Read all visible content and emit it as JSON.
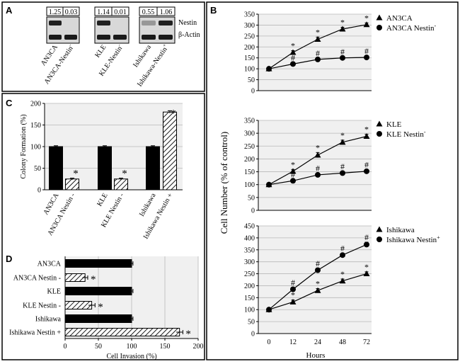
{
  "panel_a": {
    "label": "A",
    "blots": [
      {
        "ratios": [
          "1.25",
          "0.03"
        ],
        "lanes": [
          "AN3CA",
          "AN3CA-Nestin"
        ],
        "sup": [
          "",
          "-"
        ]
      },
      {
        "ratios": [
          "1.14",
          "0.01"
        ],
        "lanes": [
          "KLE",
          "KLE-Nestin"
        ],
        "sup": [
          "",
          "-"
        ]
      },
      {
        "ratios": [
          "0.55",
          "1.06"
        ],
        "lanes": [
          "Ishikawa",
          "Ishikawa-Nestin"
        ],
        "sup": [
          "",
          "+"
        ]
      }
    ],
    "row_labels": [
      "Nestin",
      "β-Actin"
    ]
  },
  "chart_data": [
    {
      "panel": "B",
      "type": "line",
      "x": [
        0,
        12,
        24,
        48,
        72
      ],
      "ylim": [
        0,
        350
      ],
      "yticks": [
        0,
        50,
        100,
        150,
        200,
        250,
        300,
        350
      ],
      "series": [
        {
          "name": "AN3CA",
          "sup": "",
          "marker": "triangle",
          "values": [
            100,
            175,
            235,
            282,
            302
          ],
          "errors": [
            3,
            8,
            10,
            8,
            8
          ],
          "mark": "*"
        },
        {
          "name": "AN3CA Nestin",
          "sup": "-",
          "marker": "circle",
          "values": [
            100,
            122,
            143,
            150,
            152
          ],
          "errors": [
            3,
            6,
            6,
            6,
            6
          ],
          "mark": "#"
        }
      ]
    },
    {
      "panel": "B",
      "type": "line",
      "x": [
        0,
        12,
        24,
        48,
        72
      ],
      "ylim": [
        0,
        350
      ],
      "yticks": [
        0,
        50,
        100,
        150,
        200,
        250,
        300,
        350
      ],
      "series": [
        {
          "name": "KLE",
          "sup": "",
          "marker": "triangle",
          "values": [
            100,
            152,
            215,
            265,
            288
          ],
          "errors": [
            3,
            7,
            10,
            8,
            8
          ],
          "mark": "*"
        },
        {
          "name": "KLE Nestin",
          "sup": "-",
          "marker": "circle",
          "values": [
            100,
            115,
            138,
            145,
            152
          ],
          "errors": [
            3,
            5,
            6,
            6,
            6
          ],
          "mark": "#"
        }
      ]
    },
    {
      "panel": "B",
      "type": "line",
      "x": [
        0,
        12,
        24,
        48,
        72
      ],
      "ylim": [
        0,
        450
      ],
      "yticks": [
        0,
        50,
        100,
        150,
        200,
        250,
        300,
        350,
        400,
        450
      ],
      "series": [
        {
          "name": "Ishikawa",
          "sup": "",
          "marker": "triangle",
          "values": [
            100,
            132,
            180,
            220,
            250
          ],
          "errors": [
            3,
            8,
            8,
            8,
            8
          ],
          "mark": "*"
        },
        {
          "name": "Ishikawa Nestin",
          "sup": "+",
          "marker": "circle",
          "values": [
            100,
            185,
            265,
            328,
            372
          ],
          "errors": [
            3,
            8,
            8,
            8,
            10
          ],
          "mark": "#"
        }
      ]
    },
    {
      "panel": "C",
      "type": "bar",
      "categories": [
        "AN3CA",
        "AN3CA Nestin -",
        "KLE",
        "KLE Nestin -",
        "Ishikawa",
        "Ishikawa Nestin +"
      ],
      "values": [
        100,
        25,
        100,
        25,
        100,
        180
      ],
      "errors": [
        2,
        2,
        2,
        2,
        2,
        3
      ],
      "hatched": [
        false,
        true,
        false,
        true,
        false,
        true
      ],
      "marks": [
        "",
        "*",
        "",
        "*",
        "",
        "*"
      ],
      "ylim": [
        0,
        200
      ],
      "yticks": [
        0,
        50,
        100,
        150,
        200
      ],
      "ylabel": "Colony Formation (%)"
    },
    {
      "panel": "D",
      "type": "bar",
      "orientation": "horizontal",
      "categories": [
        "AN3CA",
        "AN3CA Nestin -",
        "KLE",
        "KLE Nestin -",
        "Ishikawa",
        "Ishikawa Nestin +"
      ],
      "values": [
        100,
        30,
        100,
        40,
        100,
        172
      ],
      "errors": [
        2,
        4,
        2,
        5,
        2,
        5
      ],
      "hatched": [
        false,
        true,
        false,
        true,
        false,
        true
      ],
      "marks": [
        "",
        "*",
        "",
        "*",
        "",
        "*"
      ],
      "xlim": [
        0,
        200
      ],
      "xticks": [
        0,
        50,
        100,
        150,
        200
      ],
      "xlabel": "Cell Invasion (%)"
    }
  ],
  "panel_b": {
    "label": "B",
    "ylabel": "Cell Number  (% of control)",
    "xlabel": "Hours",
    "xticks": [
      "0",
      "12",
      "24",
      "48",
      "72"
    ]
  },
  "panel_c": {
    "label": "C"
  },
  "panel_d": {
    "label": "D"
  },
  "colors": {
    "bar": "#000000",
    "plot_bg": "#f0f0f0",
    "grid": "#b8b8b8"
  }
}
